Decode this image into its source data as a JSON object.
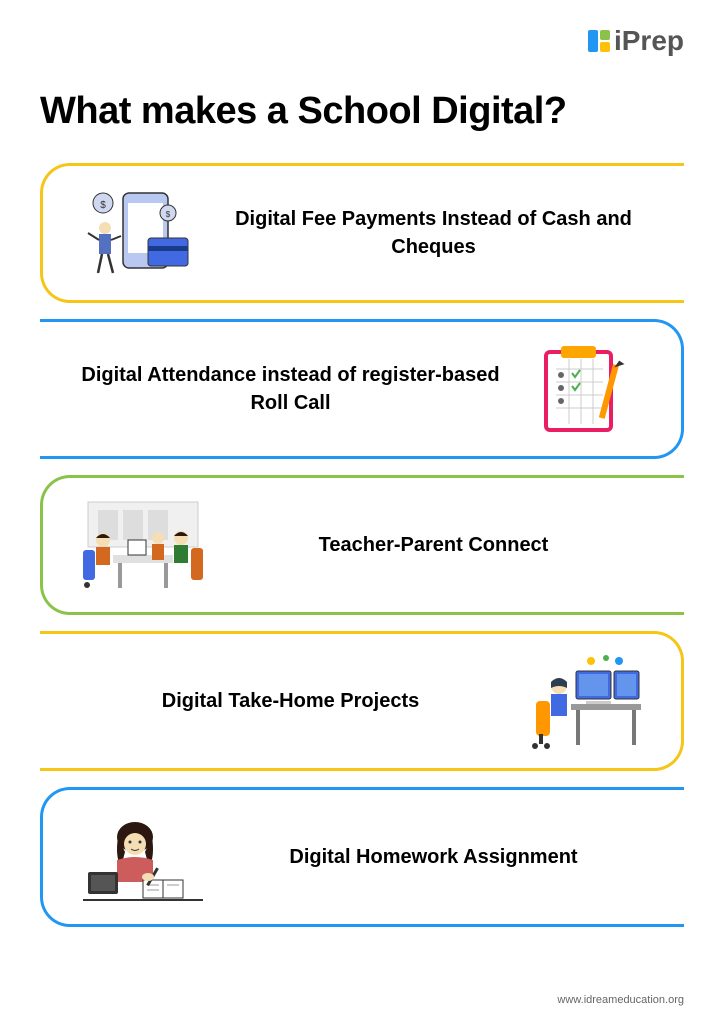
{
  "logo": {
    "text": "iPrep",
    "colors": {
      "square1": "#2196f3",
      "square2": "#8bc34a",
      "square3": "#ffc107"
    }
  },
  "title": "What makes a School Digital?",
  "cards": [
    {
      "text": "Digital Fee Payments Instead of Cash and Cheques",
      "border_color": "#f5c518",
      "illustration_side": "left",
      "round_side": "left",
      "illustration": "payment"
    },
    {
      "text": "Digital Attendance instead of register-based Roll Call",
      "border_color": "#2196f3",
      "illustration_side": "right",
      "round_side": "right",
      "illustration": "attendance"
    },
    {
      "text": "Teacher-Parent Connect",
      "border_color": "#8bc34a",
      "illustration_side": "left",
      "round_side": "left",
      "illustration": "meeting"
    },
    {
      "text": "Digital Take-Home Projects",
      "border_color": "#f5c518",
      "illustration_side": "right",
      "round_side": "right",
      "illustration": "computer"
    },
    {
      "text": "Digital Homework Assignment",
      "border_color": "#2196f3",
      "illustration_side": "left",
      "round_side": "left",
      "illustration": "homework"
    }
  ],
  "footer_url": "www.idreameducation.org",
  "illustration_colors": {
    "payment": {
      "phone": "#b8c8f0",
      "person": "#5470c0",
      "card": "#4169e1",
      "coin": "#d0d8f0"
    },
    "attendance": {
      "board": "#ffa500",
      "frame": "#e91e63",
      "pencil": "#ff9800",
      "checks": "#4caf50"
    },
    "meeting": {
      "chair": "#4169e1",
      "person1": "#d2691e",
      "person2": "#2e7d32",
      "desk": "#e0e0e0"
    },
    "computer": {
      "screen": "#4169e1",
      "person": "#2c3e50",
      "chair": "#ff9800",
      "desk": "#999"
    },
    "homework": {
      "hair": "#2c1810",
      "shirt": "#cd5c5c",
      "tablet": "#333",
      "skin": "#f5deb3"
    }
  }
}
